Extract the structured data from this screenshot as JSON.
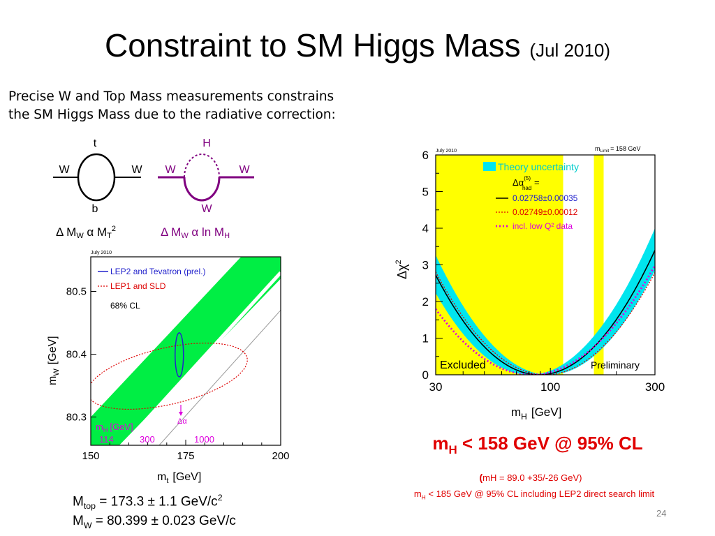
{
  "title": {
    "main": "Constraint to SM Higgs Mass",
    "date": "(Jul 2010)"
  },
  "intro_text": "Precise W and Top Mass measurements constrains the SM Higgs Mass due to the radiative correction:",
  "diagrams": {
    "top_loop": {
      "top": "t",
      "bottom": "b",
      "left": "W",
      "right": "W"
    },
    "higgs_loop": {
      "top": "H",
      "bottom": "W",
      "left": "W",
      "right": "W"
    },
    "formula_top": {
      "delta": "Δ M",
      "sub1": "W",
      "alpha": " α M",
      "sub2": "T",
      "sup": "2"
    },
    "formula_higgs": {
      "delta": "Δ M",
      "sub1": "W",
      "alpha": " α ln M",
      "sub2": "H"
    },
    "color_top": "#000000",
    "color_higgs": "#800080"
  },
  "chart_data": [
    {
      "type": "scatter",
      "date_label": "July 2010",
      "xlabel": "m",
      "xlabel_sub": "t",
      "xlabel_unit": "[GeV]",
      "ylabel": "m",
      "ylabel_sub": "W",
      "ylabel_unit": "[GeV]",
      "xlim": [
        150,
        200
      ],
      "ylim": [
        80.255,
        80.555
      ],
      "x_ticks": [
        "150",
        "175",
        "200"
      ],
      "y_ticks": [
        "80.3",
        "80.4",
        "80.5"
      ],
      "legend": [
        "LEP2 and Tevatron (prel.)",
        "LEP1 and SLD",
        "68% CL"
      ],
      "series": [
        {
          "name": "LEP2 and Tevatron (prel.)",
          "shape": "ellipse",
          "center": [
            173.3,
            80.399
          ],
          "radii": [
            1.1,
            0.035
          ],
          "color": "#2222cc"
        },
        {
          "name": "LEP1 and SLD",
          "shape": "ellipse",
          "center": [
            170.2,
            80.365
          ],
          "radii": [
            21.5,
            0.045
          ],
          "angle_deg": -13,
          "color": "#dd0000"
        }
      ],
      "band": {
        "mH_values": [
          "114",
          "300",
          "1000"
        ],
        "label": "m",
        "label_sub": "H",
        "label_unit": "[GeV]",
        "delta_alpha_label": "Δα",
        "color": "#00ee44"
      }
    },
    {
      "type": "line",
      "date_label": "July 2010",
      "limit_label": "m",
      "limit_sub": "Limit",
      "limit_value": "= 158 GeV",
      "xlabel": "m",
      "xlabel_sub": "H",
      "xlabel_unit": "[GeV]",
      "ylabel": "Δχ",
      "ylabel_sup": "2",
      "x_scale": "log",
      "xlim": [
        30,
        300
      ],
      "ylim": [
        0,
        6
      ],
      "x_ticks": [
        "30",
        "100",
        "300"
      ],
      "y_ticks": [
        "0",
        "1",
        "2",
        "3",
        "4",
        "5",
        "6"
      ],
      "excluded_label": "Excluded",
      "preliminary_label": "Preliminary",
      "excluded_regions": [
        [
          30,
          114.4
        ],
        [
          158,
          175
        ]
      ],
      "legend": {
        "theory": "Theory uncertainty",
        "alpha_label": "Δα",
        "alpha_sub": "had",
        "alpha_sup": "(5)",
        "alpha_eq": " =",
        "entries": [
          "0.02758±0.00035",
          "0.02749±0.00012",
          "incl. low Q² data"
        ]
      },
      "series": [
        {
          "name": "0.02758±0.00035",
          "style": "solid",
          "color": "#000000",
          "x": [
            30,
            50,
            89,
            150,
            300
          ],
          "min": 89,
          "mult": 12.2
        },
        {
          "name": "0.02749±0.00012",
          "style": "dotted",
          "color": "#dd0000",
          "min": 95,
          "mult": 11.2
        },
        {
          "name": "incl. low Q² data",
          "style": "dotted-thick",
          "color": "#dd00dd",
          "min": 82,
          "mult": 9.4
        }
      ],
      "theory_band": {
        "min": 89,
        "mult": 12.2,
        "width": 0.16,
        "color": "#00e5ee"
      }
    }
  ],
  "results": {
    "headline": "m",
    "headline_sub": "H",
    "headline_rest": " < 158 GeV @ 95% CL",
    "fit_open": "(",
    "fit_text": "mH = 89.0 +35/-26 GeV)",
    "limit_main": "m",
    "limit_sub": "H",
    "limit_rest": " < 185 GeV @ 95% CL including LEP2 direct search limit"
  },
  "measurements": {
    "mtop": {
      "label": "M",
      "sub": "top",
      "value": " = 173.3 ± 1.1 GeV/c",
      "sup": "2"
    },
    "mw": {
      "label": "M",
      "sub": "W",
      "value": " = 80.399 ± 0.023 GeV/c"
    }
  },
  "slide_number": "24"
}
